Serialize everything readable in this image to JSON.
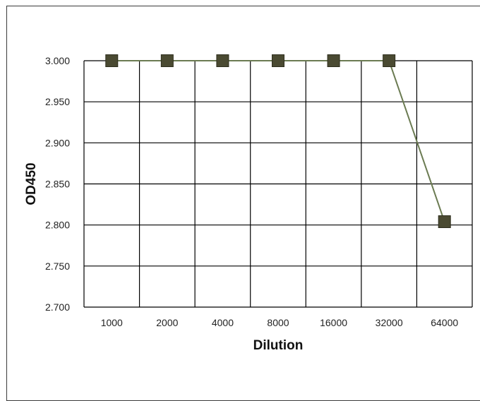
{
  "chart_data": {
    "type": "line",
    "title": "",
    "xlabel": "Dilution",
    "ylabel": "OD450",
    "categories": [
      "1000",
      "2000",
      "4000",
      "8000",
      "16000",
      "32000",
      "64000"
    ],
    "series": [
      {
        "values": [
          3.0,
          3.0,
          3.0,
          3.0,
          3.0,
          3.0,
          2.804
        ]
      }
    ],
    "ylim": [
      2.7,
      3.0
    ],
    "yticks": [
      "3.000",
      "2.950",
      "2.900",
      "2.850",
      "2.800",
      "2.750",
      "2.700"
    ],
    "grid": true,
    "legend": "none",
    "colors": {
      "line": "#6b7b52",
      "marker": "#4a4a32",
      "marker_edge": "#2e2e1e",
      "grid": "#000000"
    }
  }
}
